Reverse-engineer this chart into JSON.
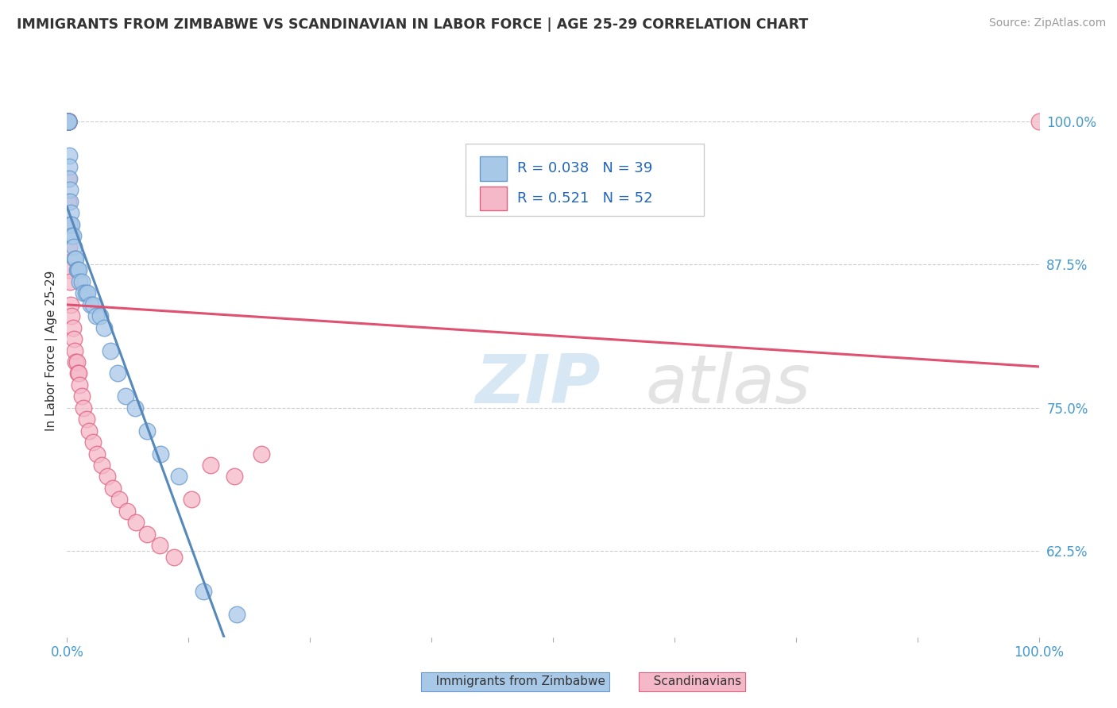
{
  "title": "IMMIGRANTS FROM ZIMBABWE VS SCANDINAVIAN IN LABOR FORCE | AGE 25-29 CORRELATION CHART",
  "source": "Source: ZipAtlas.com",
  "ylabel": "In Labor Force | Age 25-29",
  "xlim": [
    0.0,
    1.0
  ],
  "ylim": [
    0.55,
    1.05
  ],
  "yticks": [
    0.625,
    0.75,
    0.875,
    1.0
  ],
  "ytick_labels": [
    "62.5%",
    "75.0%",
    "87.5%",
    "100.0%"
  ],
  "watermark_zip": "ZIP",
  "watermark_atlas": "atlas",
  "legend_R_zimbabwe": "R = 0.038",
  "legend_N_zimbabwe": "N = 39",
  "legend_R_scandinavian": "R = 0.521",
  "legend_N_scandinavian": "N = 52",
  "legend_label_zimbabwe": "Immigrants from Zimbabwe",
  "legend_label_scandinavian": "Scandinavians",
  "color_zimbabwe_face": "#A8C8E8",
  "color_zimbabwe_edge": "#6699CC",
  "color_scandinavian_face": "#F5B8C8",
  "color_scandinavian_edge": "#E06080",
  "color_trendline_zimbabwe": "#5588BB",
  "color_trendline_scandinavian": "#E05070",
  "background_color": "#FFFFFF",
  "grid_color": "#CCCCCC",
  "zimbabwe_x": [
    0.001,
    0.001,
    0.001,
    0.001,
    0.002,
    0.002,
    0.002,
    0.003,
    0.003,
    0.004,
    0.004,
    0.005,
    0.005,
    0.006,
    0.007,
    0.008,
    0.009,
    0.01,
    0.011,
    0.012,
    0.013,
    0.015,
    0.017,
    0.019,
    0.021,
    0.024,
    0.027,
    0.03,
    0.034,
    0.038,
    0.045,
    0.052,
    0.06,
    0.07,
    0.082,
    0.096,
    0.115,
    0.14,
    0.175
  ],
  "zimbabwe_y": [
    1.0,
    1.0,
    1.0,
    1.0,
    0.97,
    0.96,
    0.95,
    0.94,
    0.93,
    0.92,
    0.91,
    0.91,
    0.9,
    0.9,
    0.89,
    0.88,
    0.88,
    0.87,
    0.87,
    0.87,
    0.86,
    0.86,
    0.85,
    0.85,
    0.85,
    0.84,
    0.84,
    0.83,
    0.83,
    0.82,
    0.8,
    0.78,
    0.76,
    0.75,
    0.73,
    0.71,
    0.69,
    0.59,
    0.57
  ],
  "scandinavian_x": [
    0.001,
    0.001,
    0.001,
    0.001,
    0.001,
    0.001,
    0.001,
    0.001,
    0.001,
    0.001,
    0.001,
    0.001,
    0.001,
    0.001,
    0.001,
    0.001,
    0.001,
    0.001,
    0.002,
    0.002,
    0.002,
    0.003,
    0.004,
    0.005,
    0.006,
    0.007,
    0.008,
    0.009,
    0.01,
    0.011,
    0.012,
    0.013,
    0.015,
    0.017,
    0.02,
    0.023,
    0.027,
    0.031,
    0.036,
    0.041,
    0.047,
    0.054,
    0.062,
    0.071,
    0.082,
    0.095,
    0.11,
    0.128,
    0.148,
    0.172,
    0.2,
    1.0
  ],
  "scandinavian_y": [
    1.0,
    1.0,
    1.0,
    1.0,
    1.0,
    1.0,
    1.0,
    1.0,
    1.0,
    1.0,
    1.0,
    1.0,
    1.0,
    1.0,
    1.0,
    1.0,
    0.95,
    0.93,
    0.91,
    0.89,
    0.87,
    0.86,
    0.84,
    0.83,
    0.82,
    0.81,
    0.8,
    0.79,
    0.79,
    0.78,
    0.78,
    0.77,
    0.76,
    0.75,
    0.74,
    0.73,
    0.72,
    0.71,
    0.7,
    0.69,
    0.68,
    0.67,
    0.66,
    0.65,
    0.64,
    0.63,
    0.62,
    0.67,
    0.7,
    0.69,
    0.71,
    1.0
  ]
}
